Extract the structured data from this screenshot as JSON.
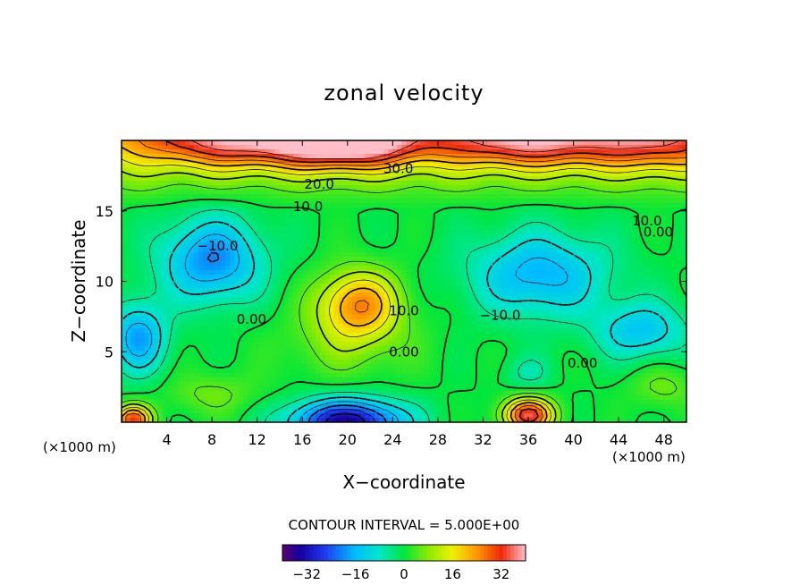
{
  "chart_data": {
    "type": "heatmap",
    "title": "zonal velocity",
    "xlabel": "X−coordinate",
    "ylabel": "Z−coordinate",
    "x_unit_left": "(×1000 m)",
    "x_unit_right": "(×1000 m)",
    "xlim": [
      0,
      50
    ],
    "ylim": [
      0,
      20
    ],
    "x_ticks": [
      4,
      8,
      12,
      16,
      20,
      24,
      28,
      32,
      36,
      40,
      44,
      48
    ],
    "y_ticks": [
      5,
      10,
      15
    ],
    "contour_interval_text": "CONTOUR INTERVAL = 5.000E+00",
    "colorbar": {
      "range": [
        -40,
        40
      ],
      "ticks": [
        -32,
        -16,
        0,
        16,
        32
      ],
      "tick_labels": [
        "−32",
        "−16",
        "0",
        "16",
        "32"
      ]
    },
    "contour_labels": [
      {
        "text": "30.0",
        "x": 24.5,
        "y": 18.0
      },
      {
        "text": "20.0",
        "x": 17.5,
        "y": 16.9
      },
      {
        "text": "10.0",
        "x": 16.5,
        "y": 15.3
      },
      {
        "text": "10.0",
        "x": 46.5,
        "y": 14.3
      },
      {
        "text": "0.00",
        "x": 47.5,
        "y": 13.5
      },
      {
        "text": "−10.0",
        "x": 8.5,
        "y": 12.5
      },
      {
        "text": "0.00",
        "x": 11.5,
        "y": 7.3
      },
      {
        "text": "10.0",
        "x": 25.0,
        "y": 7.9
      },
      {
        "text": "−10.0",
        "x": 33.5,
        "y": 7.6
      },
      {
        "text": "0.00",
        "x": 25.0,
        "y": 5.0
      },
      {
        "text": "0.00",
        "x": 40.8,
        "y": 4.2
      }
    ],
    "features": [
      {
        "x": 20,
        "y": 20,
        "value": 34,
        "sx": 6,
        "sy": 1.8
      },
      {
        "x": 10,
        "y": 20,
        "value": 24,
        "sx": 9,
        "sy": 1.8
      },
      {
        "x": 36,
        "y": 20,
        "value": 26,
        "sx": 9,
        "sy": 1.8
      },
      {
        "x": 48,
        "y": 20,
        "value": 18,
        "sx": 6,
        "sy": 2.0
      },
      {
        "x": 21,
        "y": 8.4,
        "value": 24,
        "sx": 3.6,
        "sy": 2.4
      },
      {
        "x": 20,
        "y": 5.5,
        "value": 6,
        "sx": 6,
        "sy": 2.5
      },
      {
        "x": 8,
        "y": 11.5,
        "value": -20,
        "sx": 4.5,
        "sy": 3.0
      },
      {
        "x": 1.5,
        "y": 6.0,
        "value": -18,
        "sx": 2.5,
        "sy": 2.5
      },
      {
        "x": 37,
        "y": 10.5,
        "value": -17,
        "sx": 6,
        "sy": 3.0
      },
      {
        "x": 46,
        "y": 6.5,
        "value": -14,
        "sx": 4,
        "sy": 2.0
      },
      {
        "x": 20,
        "y": 0.0,
        "value": -34,
        "sx": 5,
        "sy": 1.6
      },
      {
        "x": 36,
        "y": 0.5,
        "value": 34,
        "sx": 2.2,
        "sy": 1.2
      },
      {
        "x": 1.0,
        "y": 0.2,
        "value": 30,
        "sx": 1.6,
        "sy": 1.0
      },
      {
        "x": 36,
        "y": 3.5,
        "value": -6,
        "sx": 2.0,
        "sy": 1.2
      },
      {
        "x": 48,
        "y": 2.5,
        "value": 6,
        "sx": 3,
        "sy": 1.5
      },
      {
        "x": 8,
        "y": 2.0,
        "value": 6,
        "sx": 4,
        "sy": 1.5
      }
    ]
  }
}
